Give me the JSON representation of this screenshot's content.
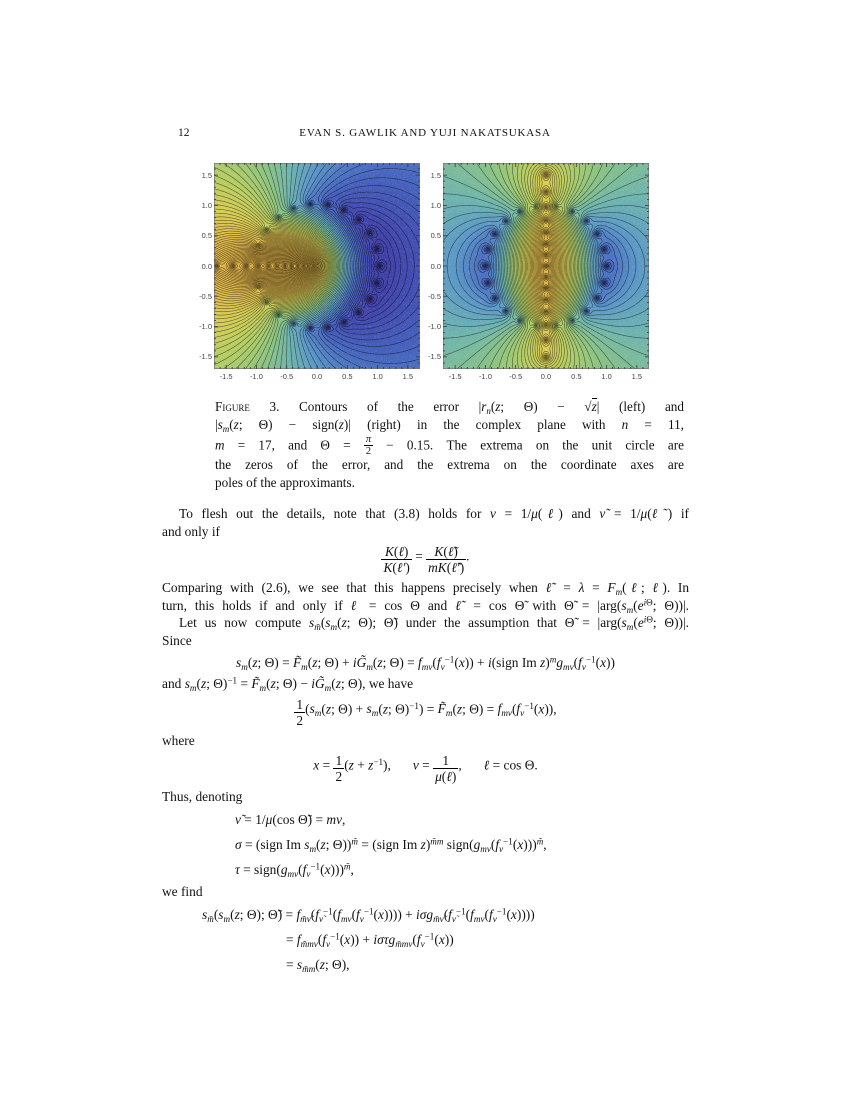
{
  "page": {
    "number": "12",
    "running_head": "EVAN S. GAWLIK AND YUJI NAKATSUKASA"
  },
  "figure": {
    "caption_lines": [
      {
        "just": true,
        "html": "<span class=sc>Figure</span> 3. Contours of the error |<i>r<sub>n</sub></i>(<i>z</i>; Θ) − √<span class=sqb><i>z</i></span>| (left) and"
      },
      {
        "just": true,
        "html": "|<i>s<sub>m</sub></i>(<i>z</i>; Θ) − sign(<i>z</i>)| (right) in the complex plane with <i>n</i> = 11,"
      },
      {
        "just": true,
        "html": "<i>m</i> = 17, and Θ = <span class=fracsm><span class=fn><i>π</i></span><span class=fd>2</span></span> − 0.15. The extrema on the unit circle are"
      },
      {
        "just": true,
        "html": "the zeros of the error, and the extrema on the coordinate axes are"
      },
      {
        "just": false,
        "html": "poles of the approximants."
      }
    ]
  },
  "chart_data": [
    {
      "type": "contour",
      "panel": "left",
      "quantity": "|r_n(z;Θ) − √z| (error of square-root approximant, n = 11)",
      "xlim": [
        -1.7,
        1.7
      ],
      "ylim": [
        -1.7,
        1.7
      ],
      "xticks": [
        -1.5,
        -1.0,
        -0.5,
        0.0,
        0.5,
        1.0,
        1.5
      ],
      "yticks": [
        -1.5,
        -1.0,
        -0.5,
        0.0,
        0.5,
        1.0,
        1.5
      ],
      "zeros": {
        "on": "unit circle",
        "radius": 1.03,
        "angles_deg": [
          -160,
          -144,
          -128,
          -112,
          -96,
          -80,
          -64,
          -48,
          -32,
          -16,
          0,
          16,
          32,
          48,
          64,
          80,
          96,
          112,
          128,
          144,
          160
        ]
      },
      "poles": {
        "axis": "real",
        "positions": [
          -1.65,
          -1.38,
          -1.16,
          -0.97,
          -0.8,
          -0.66,
          -0.53,
          -0.42,
          -0.32,
          -0.23,
          -0.15,
          -0.07
        ]
      },
      "bias": 0.2,
      "colormap": "rainbow: blue/purple = small error (zeros on unit circle), red = large error (poles on negative real axis)"
    },
    {
      "type": "contour",
      "panel": "right",
      "quantity": "|s_m(z;Θ) − sign(z)| (error of sign approximant, m = 17)",
      "xlim": [
        -1.7,
        1.7
      ],
      "ylim": [
        -1.7,
        1.7
      ],
      "xticks": [
        -1.5,
        -1.0,
        -0.5,
        0.0,
        0.5,
        1.0,
        1.5
      ],
      "yticks": [
        -1.5,
        -1.0,
        -0.5,
        0.0,
        0.5,
        1.0,
        1.5
      ],
      "zeros": {
        "on": "unit circle",
        "radius": 1.0,
        "angles_deg": [
          -80,
          -64,
          -48,
          -32,
          -16,
          0,
          16,
          32,
          48,
          64,
          80,
          100,
          116,
          132,
          148,
          164,
          180,
          196,
          212,
          228,
          244,
          260
        ]
      },
      "poles": {
        "axis": "imag",
        "positions": [
          -1.5,
          -1.22,
          -0.97,
          -0.75,
          -0.55,
          -0.36,
          -0.18,
          0,
          0.18,
          0.36,
          0.55,
          0.75,
          0.97,
          1.22,
          1.5
        ]
      },
      "bias": 0.7,
      "colormap": "rainbow: blue/purple = small error (zeros on unit circle), orange/red = large error (poles on imaginary axis)"
    }
  ],
  "content": {
    "blocks": [
      {
        "t": "line",
        "ind": true,
        "just": true,
        "html": "To flesh out the details, note that (3.8) holds for <i>ν</i> = 1/<i>μ</i>(<i>ℓ</i>) and <i>ν̃</i> = 1/<i>μ</i>(<i>ℓ̃</i>) if"
      },
      {
        "t": "line",
        "html": "and only if"
      },
      {
        "t": "eq",
        "html": "<span class=frac><span class=fn><i>K</i>(<i>ℓ</i>)</span><span class=fd><i>K</i>(<i>ℓ′</i>)</span></span> = <span class=frac><span class=fn><i>K</i>(<i>ℓ̃</i>)</span><span class=fd><i>mK</i>(<i>ℓ̃′</i>)</span></span>."
      },
      {
        "t": "line",
        "just": true,
        "html": "Comparing with (2.6), we see that this happens precisely when <i>ℓ̃</i> = <i>λ</i> = <i>F<sub>m</sub></i>(<i>ℓ</i>; <i>ℓ</i>). In"
      },
      {
        "t": "line",
        "just": true,
        "html": "turn, this holds if and only if <i>ℓ</i> = cos Θ and <i>ℓ̃</i> = cos Θ̃ with Θ̃ = |arg(<i>s<sub>m</sub></i>(<i>e</i><sup><i>i</i>Θ</sup>; Θ))|."
      },
      {
        "t": "line",
        "ind": true,
        "just": true,
        "html": "Let us now compute <i>s<sub>m̃</sub></i>(<i>s<sub>m</sub></i>(<i>z</i>; Θ); Θ̃) under the assumption that Θ̃ = |arg(<i>s<sub>m</sub></i>(<i>e</i><sup><i>i</i>Θ</sup>; Θ))|."
      },
      {
        "t": "line",
        "html": "Since"
      },
      {
        "t": "eq",
        "html": "<i>s<sub>m</sub></i>(<i>z</i>; Θ) = <i>F̃<sub>m</sub></i>(<i>z</i>; Θ) + <i>iG̃<sub>m</sub></i>(<i>z</i>; Θ) = <i>f<sub>mν</sub></i>(<i>f<sub>ν</sub></i><sup>−1</sup>(<i>x</i>)) + <i>i</i>(sign Im <i>z</i>)<sup><i>m</i></sup><i>g<sub>mν</sub></i>(<i>f<sub>ν</sub></i><sup>−1</sup>(<i>x</i>))"
      },
      {
        "t": "line",
        "html": "and <i>s<sub>m</sub></i>(<i>z</i>; Θ)<sup>−1</sup> = <i>F̃<sub>m</sub></i>(<i>z</i>; Θ) − <i>iG̃<sub>m</sub></i>(<i>z</i>; Θ), we have"
      },
      {
        "t": "eq",
        "html": "<span class=frac><span class=fn>1</span><span class=fd>2</span></span>(<i>s<sub>m</sub></i>(<i>z</i>; Θ) + <i>s<sub>m</sub></i>(<i>z</i>; Θ)<sup>−1</sup>) = <i>F̃<sub>m</sub></i>(<i>z</i>; Θ) = <i>f<sub>mν</sub></i>(<i>f<sub>ν</sub></i><sup>−1</sup>(<i>x</i>)),"
      },
      {
        "t": "line",
        "html": "where"
      },
      {
        "t": "eq",
        "html": "<i>x</i> = <span class=frac><span class=fn>1</span><span class=fd>2</span></span>(<i>z</i> + <i>z</i><sup>−1</sup>),<span class=qq></span><i>ν</i> = <span class=frac><span class=fn>1</span><span class=fd><i>μ</i>(<i>ℓ</i>)</span></span>,<span class=qq></span><i>ℓ</i> = cos Θ."
      },
      {
        "t": "line",
        "html": "Thus, denoting"
      },
      {
        "t": "eql",
        "x": 73,
        "html": "<i>ν̃</i> = 1/<i>μ</i>(cos Θ̃) = <i>mν</i>,"
      },
      {
        "t": "eql",
        "x": 73,
        "html": "<i>σ</i> = (sign Im <i>s<sub>m</sub></i>(<i>z</i>; Θ))<sup><i>m̃</i></sup> = (sign Im <i>z</i>)<sup><i>m̃m</i></sup> sign(<i>g<sub>mν</sub></i>(<i>f<sub>ν</sub></i><sup>−1</sup>(<i>x</i>)))<sup><i>m̃</i></sup>,"
      },
      {
        "t": "eql",
        "x": 73,
        "html": "<i>τ</i> = sign(<i>g<sub>mν</sub></i>(<i>f<sub>ν</sub></i><sup>−1</sup>(<i>x</i>)))<sup><i>m̃</i></sup>,"
      },
      {
        "t": "line",
        "html": "we find"
      },
      {
        "t": "eql",
        "x": 40,
        "html": "<i>s<sub>m̃</sub></i>(<i>s<sub>m</sub></i>(<i>z</i>; Θ); Θ̃) = <i>f<sub>m̃ν̃</sub></i>(<i>f<sub>ν̃</sub></i><sup>−1</sup>(<i>f<sub>mν</sub></i>(<i>f<sub>ν</sub></i><sup>−1</sup>(<i>x</i>)))) + <i>iσg<sub>m̃ν̃</sub></i>(<i>f<sub>ν̃</sub></i><sup>−1</sup>(<i>f<sub>mν</sub></i>(<i>f<sub>ν</sub></i><sup>−1</sup>(<i>x</i>))))"
      },
      {
        "t": "eql",
        "x": 124,
        "html": "= <i>f<sub>m̃mν</sub></i>(<i>f<sub>ν</sub></i><sup>−1</sup>(<i>x</i>)) + <i>iστg<sub>m̃mν</sub></i>(<i>f<sub>ν</sub></i><sup>−1</sup>(<i>x</i>))"
      },
      {
        "t": "eql",
        "x": 124,
        "html": "= <i>s<sub>m̃m</sub></i>(<i>z</i>; Θ),"
      }
    ]
  }
}
